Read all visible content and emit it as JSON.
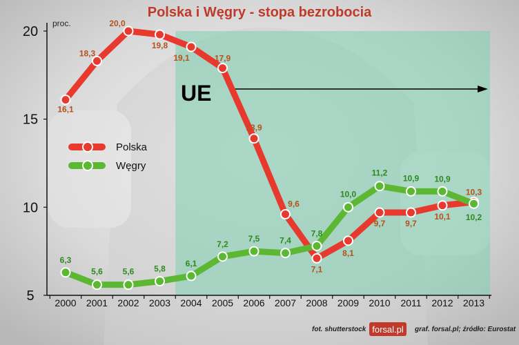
{
  "chart_data": {
    "type": "line",
    "title": "Polska i Węgry - stopa bezrobocia",
    "ylabel": "proc.",
    "xlabel": "",
    "categories": [
      "2000",
      "2001",
      "2002",
      "2003",
      "2004",
      "2005",
      "2006",
      "2007",
      "2008",
      "2009",
      "2010",
      "2011",
      "2012",
      "2013"
    ],
    "ylim": [
      5,
      20
    ],
    "yticks": [
      "5",
      "10",
      "15",
      "20"
    ],
    "series": [
      {
        "name": "Polska",
        "color": "#e8392f",
        "values": [
          16.1,
          18.3,
          20.0,
          19.8,
          19.1,
          17.9,
          13.9,
          9.6,
          7.1,
          8.1,
          9.7,
          9.7,
          10.1,
          10.3
        ],
        "labels": [
          "16,1",
          "18,3",
          "20,0",
          "19,8",
          "19,1",
          "17,9",
          "13,9",
          "9,6",
          "7,1",
          "8,1",
          "9,7",
          "9,7",
          "10,1",
          "10,3"
        ]
      },
      {
        "name": "Węgry",
        "color": "#5cb832",
        "values": [
          6.3,
          5.6,
          5.6,
          5.8,
          6.1,
          7.2,
          7.5,
          7.4,
          7.8,
          10.0,
          11.2,
          10.9,
          10.9,
          10.2
        ],
        "labels": [
          "6,3",
          "5,6",
          "5,6",
          "5,8",
          "6,1",
          "7,2",
          "7,5",
          "7,4",
          "7,8",
          "10,0",
          "11,2",
          "10,9",
          "10,9",
          "10,2"
        ]
      }
    ],
    "annotation": {
      "text": "UE",
      "start": "2004"
    },
    "grid": false,
    "legend_position": "left"
  },
  "footer": {
    "photo_credit": "fot. shutterstock",
    "logo": "forsal.pl",
    "source": "graf. forsal.pl; źródło: Eurostat"
  },
  "colors": {
    "title": "#c0392b",
    "eu_region": "#7fcfb0",
    "label_pl": "#b5521b",
    "label_hu": "#2c8a1f",
    "logo_bg": "#c0392b"
  }
}
